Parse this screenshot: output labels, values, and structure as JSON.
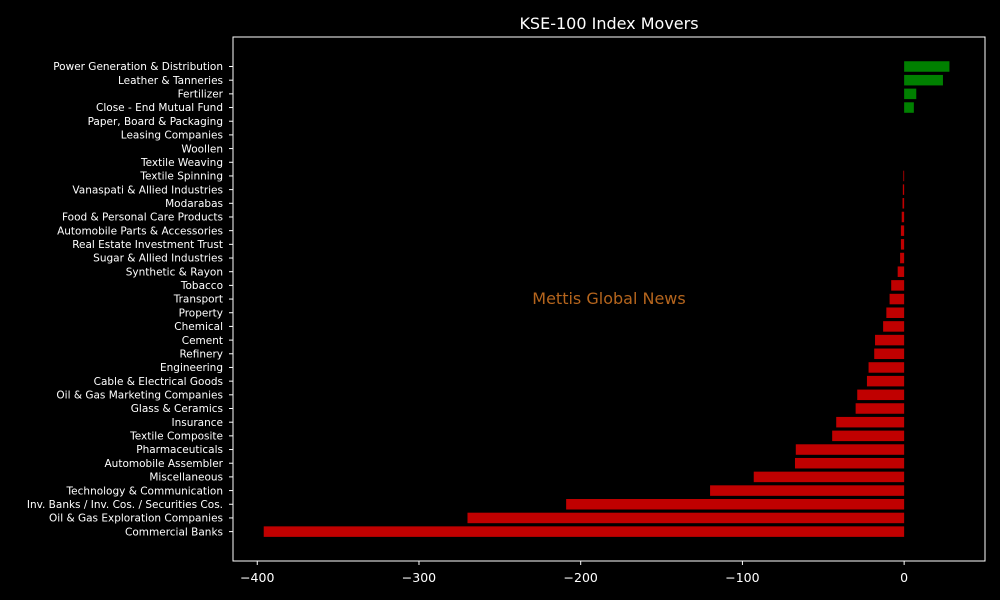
{
  "chart_data": {
    "type": "bar",
    "orientation": "horizontal",
    "title": "KSE-100 Index Movers",
    "xlabel": "",
    "ylabel": "",
    "xlim": [
      -415,
      50
    ],
    "xticks": [
      -400,
      -300,
      -200,
      -100,
      0
    ],
    "xtick_labels": [
      "−400",
      "−300",
      "−200",
      "−100",
      "0"
    ],
    "grid": false,
    "legend": "none",
    "watermark": "Mettis Global News",
    "colors": {
      "background": "#000000",
      "text": "#ffffff",
      "positive": "#008000",
      "negative": "#c00000",
      "watermark": "#b5651d"
    },
    "categories": [
      "Power Generation & Distribution",
      "Leather & Tanneries",
      "Fertilizer",
      "Close - End Mutual Fund",
      "Paper, Board & Packaging",
      "Leasing Companies",
      "Woollen",
      "Textile Weaving",
      "Textile Spinning",
      "Vanaspati & Allied Industries",
      "Modarabas",
      "Food & Personal Care Products",
      "Automobile Parts & Accessories",
      "Real Estate Investment Trust",
      "Sugar & Allied Industries",
      "Synthetic & Rayon",
      "Tobacco",
      "Transport",
      "Property",
      "Chemical",
      "Cement",
      "Refinery",
      "Engineering",
      "Cable & Electrical Goods",
      "Oil & Gas Marketing Companies",
      "Glass & Ceramics",
      "Insurance",
      "Textile Composite",
      "Pharmaceuticals",
      "Automobile Assembler",
      "Miscellaneous",
      "Technology & Communication",
      "Inv. Banks / Inv. Cos. / Securities Cos.",
      "Oil & Gas Exploration Companies",
      "Commercial Banks"
    ],
    "values": [
      28,
      24,
      7.5,
      6,
      0,
      0,
      0,
      0,
      -0.5,
      -0.8,
      -1,
      -1.5,
      -2,
      -2,
      -2.5,
      -4,
      -8,
      -9,
      -11,
      -13,
      -18,
      -18.5,
      -22,
      -23,
      -29,
      -30,
      -42,
      -44.5,
      -67,
      -67.5,
      -93,
      -120,
      -209,
      -270,
      -396
    ]
  }
}
